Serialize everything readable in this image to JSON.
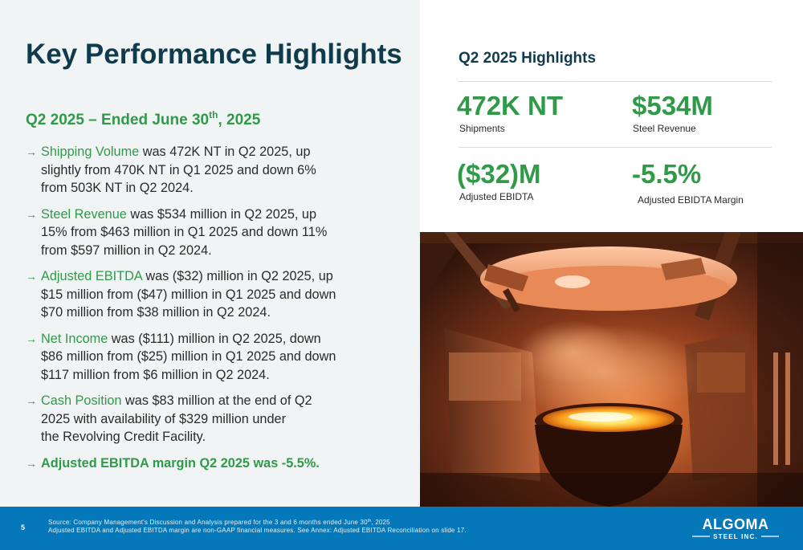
{
  "title": "Key Performance Highlights",
  "subtitle": {
    "text": "Q2 2025 – Ended June 30",
    "sup": "th",
    "tail": ", 2025"
  },
  "bullets": [
    {
      "lead": "Shipping Volume",
      "lines": [
        "was 472K NT in Q2 2025, up",
        "slightly from 470K NT in Q1 2025 and down 6%",
        "from 503K NT in Q2 2024."
      ]
    },
    {
      "lead": "Steel Revenue",
      "lines": [
        "was $534 million in Q2 2025, up",
        "15% from $463 million in Q1 2025 and down 11%",
        "from $597 million in Q2 2024."
      ]
    },
    {
      "lead": "Adjusted EBITDA",
      "lines": [
        "was ($32) million in Q2 2025, up",
        "$15 million from ($47) million in Q1 2025 and down",
        "$70 million from $38 million in Q2 2024."
      ]
    },
    {
      "lead": "Net Income",
      "lines": [
        "was ($111) million in Q2 2025, down",
        "$86 million from ($25) million in Q1 2025 and down",
        "$117 million from $6 million in Q2 2024."
      ]
    },
    {
      "lead": "Cash Position",
      "lines": [
        "was $83 million at the end of Q2",
        "2025 with availability of $329 million under",
        "the Revolving Credit Facility."
      ]
    },
    {
      "lead": "Adjusted EBITDA margin Q2 2025 was -5.5%.",
      "lines": []
    }
  ],
  "highlights": {
    "title": "Q2 2025 Highlights",
    "metrics": [
      {
        "value": "472K NT",
        "label": "Shipments"
      },
      {
        "value": "$534M",
        "label": "Steel Revenue"
      },
      {
        "value": "($32)M",
        "label": "Adjusted EBIDTA"
      },
      {
        "value": "-5.5%",
        "label": "Adjusted EBIDTA Margin"
      }
    ]
  },
  "footer": {
    "page_number": "5",
    "source_line_1": "Source: Company Management's Discussion and Analysis prepared for the 3 and 6 months ended June 30",
    "source_line_1_sup": "th",
    "source_line_1_tail": ", 2025",
    "source_line_2": "Adjusted EBITDA and Adjusted EBITDA margin are non-GAAP financial measures. See Annex: Adjusted EBITDA Reconciliation on slide 17.",
    "logo_main": "ALGOMA",
    "logo_sub": "STEEL INC."
  },
  "colors": {
    "navy": "#0f3b4c",
    "green": "#2f9a48",
    "footer_blue": "#0478b8",
    "panel_bg": "#f1f4f4"
  }
}
